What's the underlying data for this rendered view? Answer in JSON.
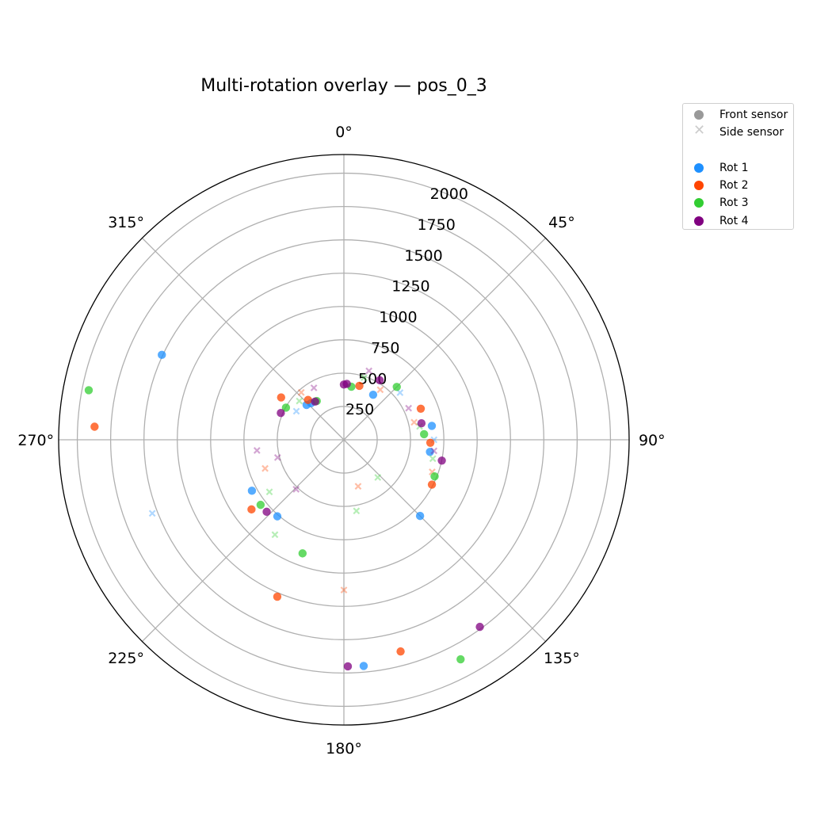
{
  "chart_data": {
    "type": "scatter",
    "projection": "polar",
    "title": "Multi-rotation overlay — pos_0_3",
    "theta_zero": "N",
    "theta_direction": "clockwise",
    "theta_ticks": [
      "0°",
      "45°",
      "90°",
      "135°",
      "180°",
      "225°",
      "270°",
      "315°"
    ],
    "theta_tick_values": [
      0,
      45,
      90,
      135,
      180,
      225,
      270,
      315
    ],
    "r_ticks": [
      250,
      500,
      750,
      1000,
      1250,
      1500,
      1750,
      2000
    ],
    "r_tick_labels": [
      "250",
      "500",
      "750",
      "1000",
      "1250",
      "1500",
      "1750",
      "2000"
    ],
    "rlim": [
      0,
      2140
    ],
    "grid": true,
    "legend": {
      "placement": "outside-top-right",
      "marker_entries": [
        {
          "label": "Front sensor",
          "marker": "o",
          "color": "#999999"
        },
        {
          "label": "Side sensor",
          "marker": "x",
          "color": "#cccccc"
        }
      ],
      "series_entries": [
        {
          "label": "Rot 1",
          "color": "#1e90ff"
        },
        {
          "label": "Rot 2",
          "color": "#ff4500"
        },
        {
          "label": "Rot 3",
          "color": "#32cd32"
        },
        {
          "label": "Rot 4",
          "color": "#800080"
        }
      ]
    },
    "series": [
      {
        "name": "Rot 1",
        "color": "#1e90ff",
        "front": [
          [
            33,
            403
          ],
          [
            81,
            668
          ],
          [
            98,
            652
          ],
          [
            135,
            808
          ],
          [
            175,
            1703
          ],
          [
            221,
            761
          ],
          [
            241,
            789
          ],
          [
            295,
            1507
          ],
          [
            313,
            383
          ],
          [
            318,
            369
          ]
        ],
        "side": [
          [
            50,
            550
          ],
          [
            90,
            676
          ],
          [
            249,
            1540
          ],
          [
            301,
            416
          ]
        ]
      },
      {
        "name": "Rot 2",
        "color": "#ff4500",
        "front": [
          [
            16,
            421
          ],
          [
            68,
            622
          ],
          [
            92,
            649
          ],
          [
            117,
            741
          ],
          [
            165,
            1644
          ],
          [
            203,
            1279
          ],
          [
            233,
            868
          ],
          [
            273,
            1873
          ],
          [
            304,
            568
          ],
          [
            318,
            402
          ]
        ],
        "side": [
          [
            36,
            464
          ],
          [
            76,
            543
          ],
          [
            110,
            705
          ],
          [
            163,
            365
          ],
          [
            180,
            1127
          ],
          [
            250,
            629
          ],
          [
            318,
            478
          ]
        ]
      },
      {
        "name": "Rot 3",
        "color": "#32cd32",
        "front": [
          [
            8,
            402
          ],
          [
            45,
            561
          ],
          [
            86,
            603
          ],
          [
            112,
            734
          ],
          [
            152,
            1865
          ],
          [
            200,
            907
          ],
          [
            232,
            793
          ],
          [
            281,
            1950
          ],
          [
            299,
            497
          ],
          [
            325,
            355
          ]
        ],
        "side": [
          [
            18,
            490
          ],
          [
            80,
            577
          ],
          [
            102,
            682
          ],
          [
            138,
            380
          ],
          [
            170,
            542
          ],
          [
            216,
            880
          ],
          [
            235,
            682
          ],
          [
            311,
            443
          ]
        ]
      },
      {
        "name": "Rot 4",
        "color": "#800080",
        "front": [
          [
            0,
            414
          ],
          [
            3,
            420
          ],
          [
            31,
            521
          ],
          [
            78,
            595
          ],
          [
            102,
            751
          ],
          [
            144,
            1735
          ],
          [
            179,
            1700
          ],
          [
            227,
            792
          ],
          [
            293,
            514
          ],
          [
            323,
            359
          ]
        ],
        "side": [
          [
            20,
            550
          ],
          [
            64,
            540
          ],
          [
            97,
            681
          ],
          [
            224,
            516
          ],
          [
            255,
            515
          ],
          [
            263,
            657
          ],
          [
            330,
            450
          ]
        ]
      }
    ]
  }
}
